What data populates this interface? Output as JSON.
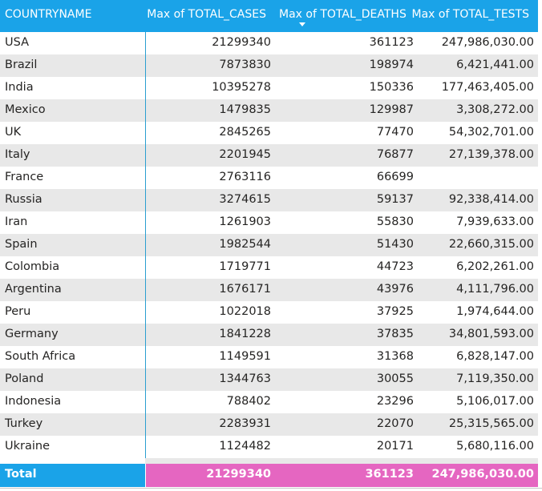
{
  "columns": [
    "COUNTRYNAME",
    "Max of TOTAL_CASES",
    "Max of TOTAL_DEATHS",
    "Max of TOTAL_TESTS"
  ],
  "sort": {
    "column": "Max of TOTAL_DEATHS",
    "direction": "descending",
    "icon": "sort-descending-icon"
  },
  "rows": [
    [
      "USA",
      "21299340",
      "361123",
      "247,986,030.00"
    ],
    [
      "Brazil",
      "7873830",
      "198974",
      "6,421,441.00"
    ],
    [
      "India",
      "10395278",
      "150336",
      "177,463,405.00"
    ],
    [
      "Mexico",
      "1479835",
      "129987",
      "3,308,272.00"
    ],
    [
      "UK",
      "2845265",
      "77470",
      "54,302,701.00"
    ],
    [
      "Italy",
      "2201945",
      "76877",
      "27,139,378.00"
    ],
    [
      "France",
      "2763116",
      "66699",
      ""
    ],
    [
      "Russia",
      "3274615",
      "59137",
      "92,338,414.00"
    ],
    [
      "Iran",
      "1261903",
      "55830",
      "7,939,633.00"
    ],
    [
      "Spain",
      "1982544",
      "51430",
      "22,660,315.00"
    ],
    [
      "Colombia",
      "1719771",
      "44723",
      "6,202,261.00"
    ],
    [
      "Argentina",
      "1676171",
      "43976",
      "4,111,796.00"
    ],
    [
      "Peru",
      "1022018",
      "37925",
      "1,974,644.00"
    ],
    [
      "Germany",
      "1841228",
      "37835",
      "34,801,593.00"
    ],
    [
      "South Africa",
      "1149591",
      "31368",
      "6,828,147.00"
    ],
    [
      "Poland",
      "1344763",
      "30055",
      "7,119,350.00"
    ],
    [
      "Indonesia",
      "788402",
      "23296",
      "5,106,017.00"
    ],
    [
      "Turkey",
      "2283931",
      "22070",
      "25,315,565.00"
    ],
    [
      "Ukraine",
      "1124482",
      "20171",
      "5,680,116.00"
    ]
  ],
  "total": {
    "label": "Total",
    "cases": "21299340",
    "deaths": "361123",
    "tests": "247,986,030.00"
  },
  "colors": {
    "header": "#1aa3e8",
    "total_values": "#e566c1",
    "row_alt": "#e8e8e8"
  }
}
